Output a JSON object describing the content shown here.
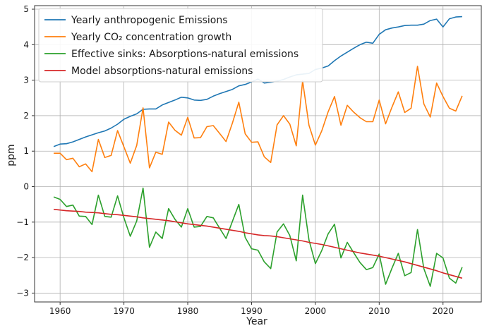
{
  "chart_data": {
    "type": "line",
    "title": "",
    "xlabel": "Year",
    "ylabel": "ppm",
    "xlim": [
      1956,
      2026
    ],
    "ylim": [
      -3.25,
      5.1
    ],
    "xticks": [
      1960,
      1970,
      1980,
      1990,
      2000,
      2010,
      2020
    ],
    "yticks": [
      -3,
      -2,
      -1,
      0,
      1,
      2,
      3,
      4,
      5
    ],
    "grid": true,
    "legend_position": "top-left",
    "x": [
      1959,
      1960,
      1961,
      1962,
      1963,
      1964,
      1965,
      1966,
      1967,
      1968,
      1969,
      1970,
      1971,
      1972,
      1973,
      1974,
      1975,
      1976,
      1977,
      1978,
      1979,
      1980,
      1981,
      1982,
      1983,
      1984,
      1985,
      1986,
      1987,
      1988,
      1989,
      1990,
      1991,
      1992,
      1993,
      1994,
      1995,
      1996,
      1997,
      1998,
      1999,
      2000,
      2001,
      2002,
      2003,
      2004,
      2005,
      2006,
      2007,
      2008,
      2009,
      2010,
      2011,
      2012,
      2013,
      2014,
      2015,
      2016,
      2017,
      2018,
      2019,
      2020,
      2021,
      2022,
      2023
    ],
    "series": [
      {
        "name": "Yearly anthropogenic Emissions",
        "color": "#1f77b4",
        "values": [
          1.13,
          1.2,
          1.21,
          1.26,
          1.33,
          1.4,
          1.46,
          1.52,
          1.57,
          1.65,
          1.76,
          1.9,
          1.98,
          2.05,
          2.18,
          2.19,
          2.19,
          2.3,
          2.37,
          2.44,
          2.52,
          2.5,
          2.44,
          2.43,
          2.46,
          2.55,
          2.62,
          2.68,
          2.74,
          2.84,
          2.88,
          2.95,
          3.03,
          2.92,
          2.94,
          2.97,
          3.02,
          3.09,
          3.15,
          3.17,
          3.19,
          3.3,
          3.34,
          3.4,
          3.55,
          3.68,
          3.79,
          3.9,
          4.0,
          4.07,
          4.04,
          4.29,
          4.42,
          4.47,
          4.5,
          4.54,
          4.55,
          4.55,
          4.58,
          4.68,
          4.72,
          4.5,
          4.73,
          4.78,
          4.79
        ]
      },
      {
        "name": "Yearly CO₂ concentration growth",
        "color": "#ff7f0e",
        "values": [
          0.94,
          0.94,
          0.76,
          0.8,
          0.56,
          0.64,
          0.42,
          1.33,
          0.82,
          0.88,
          1.58,
          1.12,
          0.66,
          1.16,
          2.22,
          0.53,
          0.97,
          0.91,
          1.82,
          1.59,
          1.45,
          1.95,
          1.37,
          1.38,
          1.69,
          1.72,
          1.5,
          1.27,
          1.79,
          2.38,
          1.49,
          1.25,
          1.26,
          0.84,
          0.68,
          1.74,
          2.0,
          1.76,
          1.15,
          2.98,
          1.73,
          1.17,
          1.57,
          2.11,
          2.54,
          1.73,
          2.29,
          2.1,
          1.94,
          1.83,
          1.83,
          2.44,
          1.77,
          2.24,
          2.67,
          2.09,
          2.21,
          3.39,
          2.33,
          1.96,
          2.92,
          2.54,
          2.21,
          2.13,
          2.56
        ]
      },
      {
        "name": "Effective sinks: Absorptions-natural emissions",
        "color": "#2ca02c",
        "values": [
          -0.29,
          -0.36,
          -0.56,
          -0.52,
          -0.83,
          -0.84,
          -1.07,
          -0.24,
          -0.84,
          -0.86,
          -0.26,
          -0.88,
          -1.4,
          -0.97,
          -0.04,
          -1.71,
          -1.28,
          -1.46,
          -0.62,
          -0.92,
          -1.14,
          -0.62,
          -1.14,
          -1.12,
          -0.84,
          -0.88,
          -1.17,
          -1.46,
          -0.98,
          -0.5,
          -1.43,
          -1.75,
          -1.79,
          -2.12,
          -2.31,
          -1.28,
          -1.05,
          -1.38,
          -2.09,
          -0.24,
          -1.5,
          -2.17,
          -1.8,
          -1.33,
          -1.06,
          -2.01,
          -1.57,
          -1.86,
          -2.14,
          -2.34,
          -2.28,
          -1.9,
          -2.75,
          -2.3,
          -1.88,
          -2.51,
          -2.42,
          -1.21,
          -2.31,
          -2.81,
          -1.88,
          -2.01,
          -2.58,
          -2.72,
          -2.27
        ]
      },
      {
        "name": "Model absorptions-natural emissions",
        "color": "#d62728",
        "values": [
          -0.64,
          -0.66,
          -0.68,
          -0.69,
          -0.7,
          -0.72,
          -0.73,
          -0.74,
          -0.76,
          -0.78,
          -0.79,
          -0.81,
          -0.83,
          -0.85,
          -0.88,
          -0.9,
          -0.92,
          -0.94,
          -0.96,
          -0.99,
          -1.02,
          -1.05,
          -1.07,
          -1.09,
          -1.11,
          -1.14,
          -1.17,
          -1.2,
          -1.23,
          -1.26,
          -1.3,
          -1.33,
          -1.36,
          -1.38,
          -1.39,
          -1.41,
          -1.44,
          -1.47,
          -1.5,
          -1.53,
          -1.57,
          -1.6,
          -1.63,
          -1.67,
          -1.71,
          -1.75,
          -1.79,
          -1.83,
          -1.87,
          -1.9,
          -1.93,
          -1.96,
          -2.0,
          -2.04,
          -2.08,
          -2.12,
          -2.17,
          -2.22,
          -2.27,
          -2.32,
          -2.37,
          -2.43,
          -2.48,
          -2.53,
          -2.58
        ]
      }
    ]
  }
}
